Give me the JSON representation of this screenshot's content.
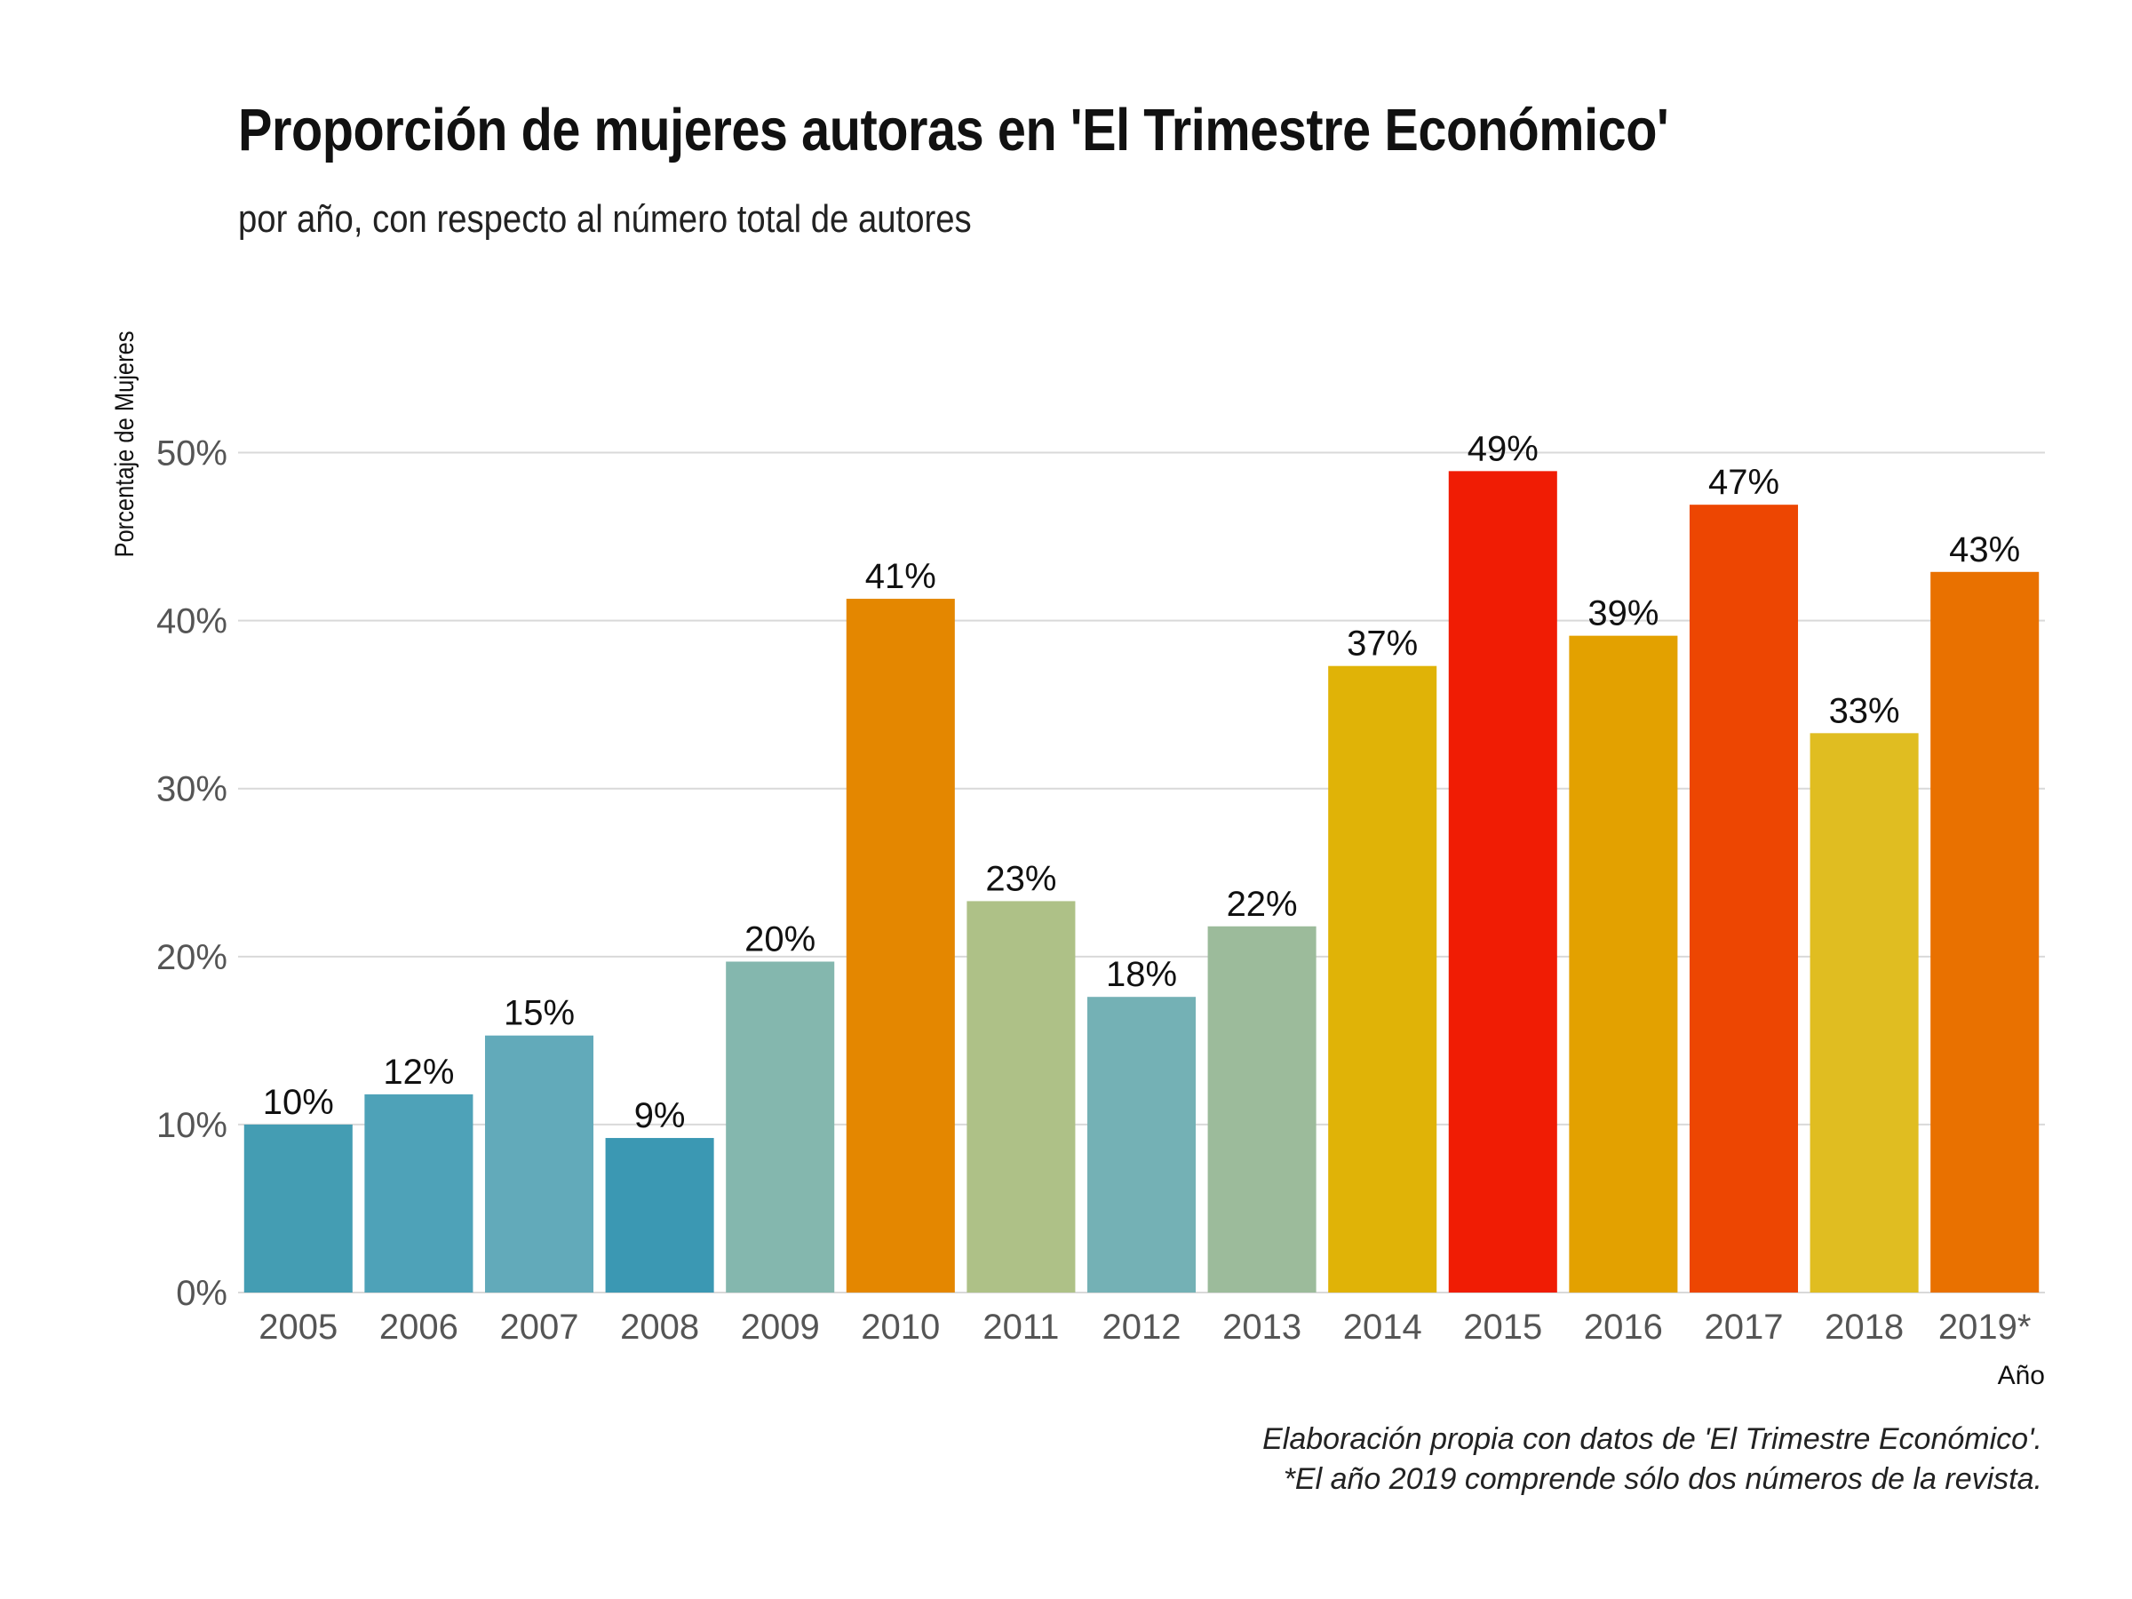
{
  "chart_data": {
    "type": "bar",
    "title": "Proporción de mujeres autoras en 'El Trimestre Económico'",
    "subtitle": "por año, con respecto al número total de autores",
    "xlabel": "Año",
    "ylabel": "Porcentaje de Mujeres",
    "categories": [
      "2005",
      "2006",
      "2007",
      "2008",
      "2009",
      "2010",
      "2011",
      "2012",
      "2013",
      "2014",
      "2015",
      "2016",
      "2017",
      "2018",
      "2019*"
    ],
    "values": [
      10.0,
      11.8,
      15.3,
      9.2,
      19.7,
      41.3,
      23.3,
      17.6,
      21.8,
      37.3,
      48.9,
      39.1,
      46.9,
      33.3,
      42.9
    ],
    "data_labels": [
      "10%",
      "12%",
      "15%",
      "9%",
      "20%",
      "41%",
      "23%",
      "18%",
      "22%",
      "37%",
      "49%",
      "39%",
      "47%",
      "33%",
      "43%"
    ],
    "bar_colors": [
      "#449db3",
      "#4ea2b8",
      "#62aaba",
      "#3b98b3",
      "#84b7ae",
      "#e48700",
      "#aec187",
      "#74b1b5",
      "#9cbb9b",
      "#e0b307",
      "#f01c04",
      "#e3a100",
      "#ed4602",
      "#e0bd21",
      "#e97100"
    ],
    "ylim": [
      0,
      55
    ],
    "y_ticks": [
      0,
      10,
      20,
      30,
      40,
      50
    ],
    "y_tick_labels": [
      "0%",
      "10%",
      "20%",
      "30%",
      "40%",
      "50%"
    ],
    "grid": true,
    "legend": "none"
  },
  "caption": {
    "line1": "Elaboración propia con datos de 'El Trimestre Económico'.",
    "line2": "*El año 2019 comprende sólo dos números de la revista."
  },
  "colors": {
    "gridline": "#d9d9d9",
    "tick_text": "#555555",
    "text": "#111111",
    "background": "#ffffff"
  }
}
